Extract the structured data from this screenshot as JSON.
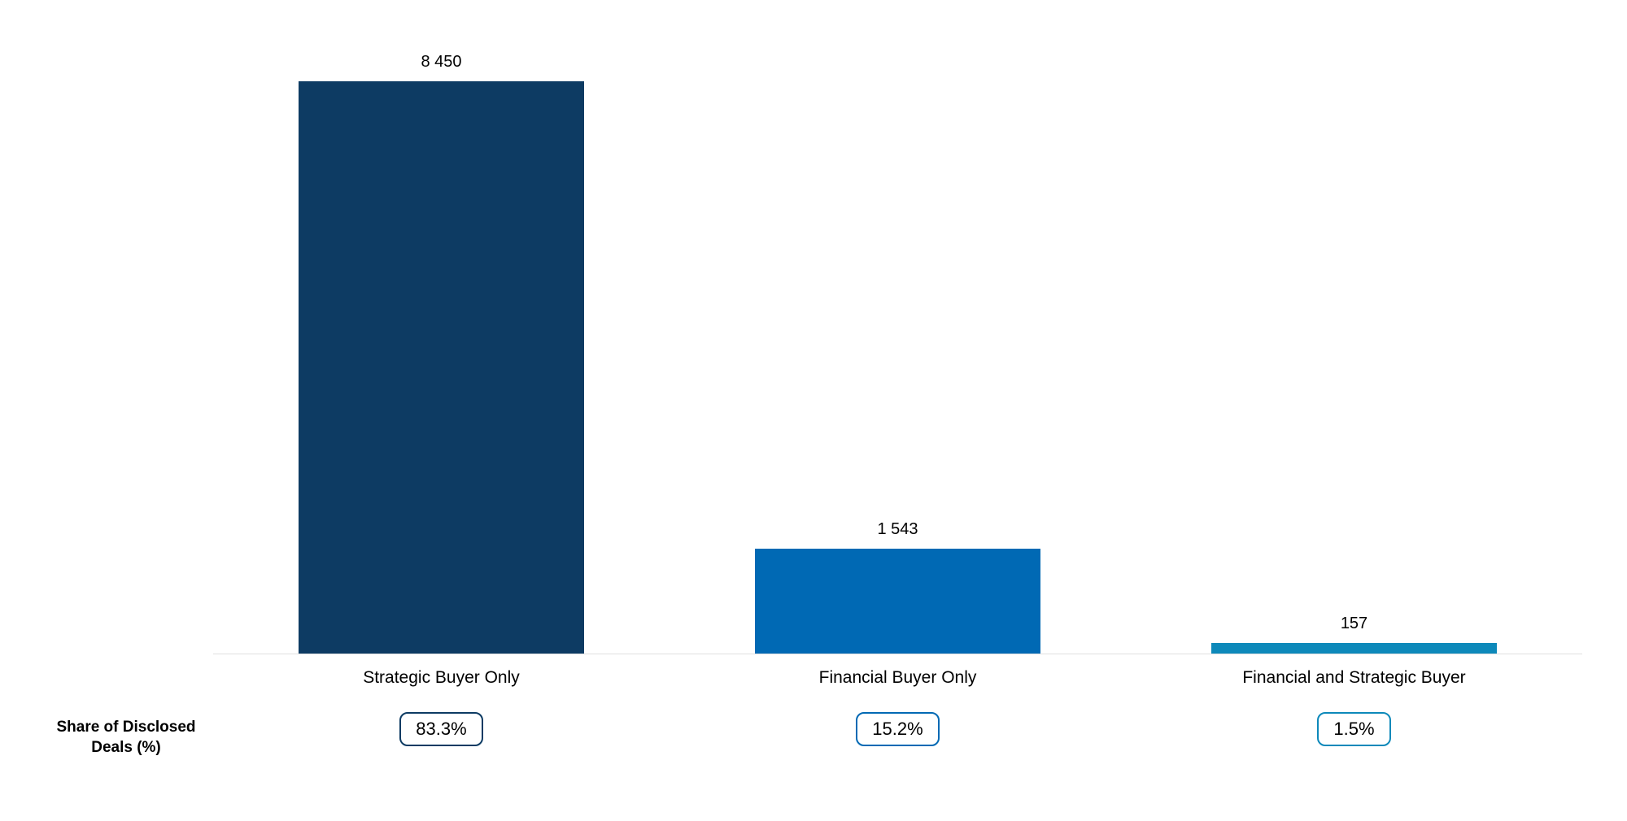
{
  "chart_data": {
    "type": "bar",
    "title": "",
    "xlabel": "",
    "ylabel": "",
    "categories": [
      "Strategic Buyer Only",
      "Financial Buyer Only",
      "Financial and Strategic Buyer"
    ],
    "values": [
      8450,
      1543,
      157
    ],
    "value_labels": [
      "8 450",
      "1 543",
      "157"
    ],
    "share_row": {
      "label_line1": "Share of Disclosed",
      "label_line2": "Deals (%)",
      "values": [
        "83.3%",
        "15.2%",
        "1.5%"
      ]
    },
    "bar_colors": [
      "#0d3b63",
      "#0069b4",
      "#0d89ba"
    ],
    "badge_border_colors": [
      "#0d3b63",
      "#0069b4",
      "#0d89ba"
    ],
    "axis_line_color": "#e0e0e0",
    "ylim": [
      0,
      8450
    ],
    "grid": false,
    "legend": false
  }
}
